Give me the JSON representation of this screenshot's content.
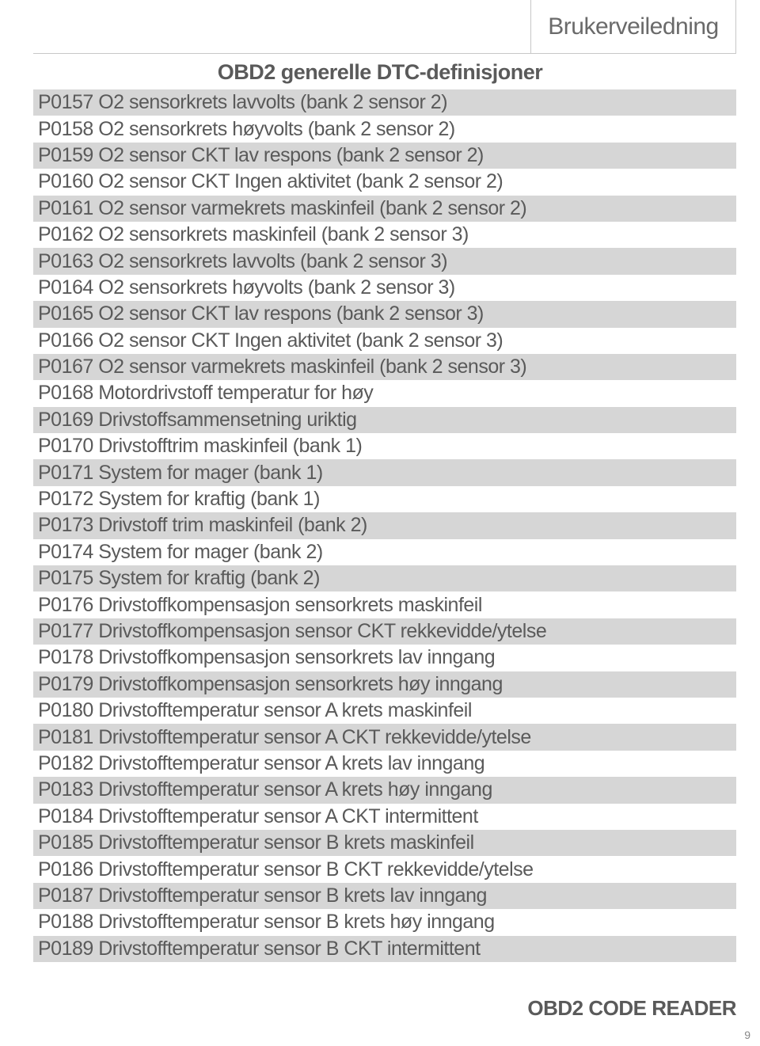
{
  "header": {
    "title": "Brukerveiledning"
  },
  "section_title": "OBD2 generelle DTC-definisjoner",
  "rows": [
    "P0157 O2 sensorkrets lavvolts (bank 2 sensor 2)",
    "P0158 O2 sensorkrets høyvolts (bank 2 sensor 2)",
    "P0159 O2 sensor CKT lav respons (bank 2 sensor 2)",
    "P0160 O2 sensor CKT Ingen aktivitet (bank 2 sensor 2)",
    "P0161 O2 sensor varmekrets maskinfeil (bank 2 sensor 2)",
    "P0162 O2 sensorkrets maskinfeil (bank 2 sensor 3)",
    "P0163 O2 sensorkrets lavvolts (bank 2 sensor 3)",
    "P0164 O2 sensorkrets høyvolts (bank 2 sensor 3)",
    "P0165 O2 sensor CKT lav respons (bank 2 sensor 3)",
    "P0166 O2 sensor CKT Ingen aktivitet (bank 2 sensor 3)",
    "P0167 O2 sensor varmekrets maskinfeil (bank 2 sensor 3)",
    "P0168 Motordrivstoff temperatur for høy",
    "P0169 Drivstoffsammensetning uriktig",
    "P0170 Drivstofftrim maskinfeil (bank 1)",
    "P0171 System for mager (bank 1)",
    "P0172 System for kraftig (bank 1)",
    "P0173 Drivstoff trim maskinfeil (bank 2)",
    "P0174 System for mager (bank 2)",
    "P0175 System for kraftig (bank 2)",
    "P0176 Drivstoffkompensasjon sensorkrets maskinfeil",
    "P0177 Drivstoffkompensasjon sensor CKT rekkevidde/ytelse",
    "P0178 Drivstoffkompensasjon sensorkrets lav inngang",
    "P0179 Drivstoffkompensasjon sensorkrets høy inngang",
    "P0180 Drivstofftemperatur sensor A krets maskinfeil",
    "P0181 Drivstofftemperatur sensor A CKT rekkevidde/ytelse",
    "P0182 Drivstofftemperatur sensor A krets lav inngang",
    "P0183 Drivstofftemperatur sensor A krets høy inngang",
    "P0184 Drivstofftemperatur sensor A CKT intermittent",
    "P0185 Drivstofftemperatur sensor B krets maskinfeil",
    "P0186 Drivstofftemperatur sensor B CKT rekkevidde/ytelse",
    "P0187 Drivstofftemperatur sensor B krets lav inngang",
    "P0188 Drivstofftemperatur sensor B krets høy inngang",
    "P0189 Drivstofftemperatur sensor B CKT intermittent"
  ],
  "footer": {
    "label": "OBD2 CODE READER",
    "page": "9"
  },
  "style": {
    "row_colors": [
      "#d6d6d6",
      "#ffffff"
    ],
    "text_color": "#5a5a5a",
    "border_color": "#c7c7c7"
  }
}
